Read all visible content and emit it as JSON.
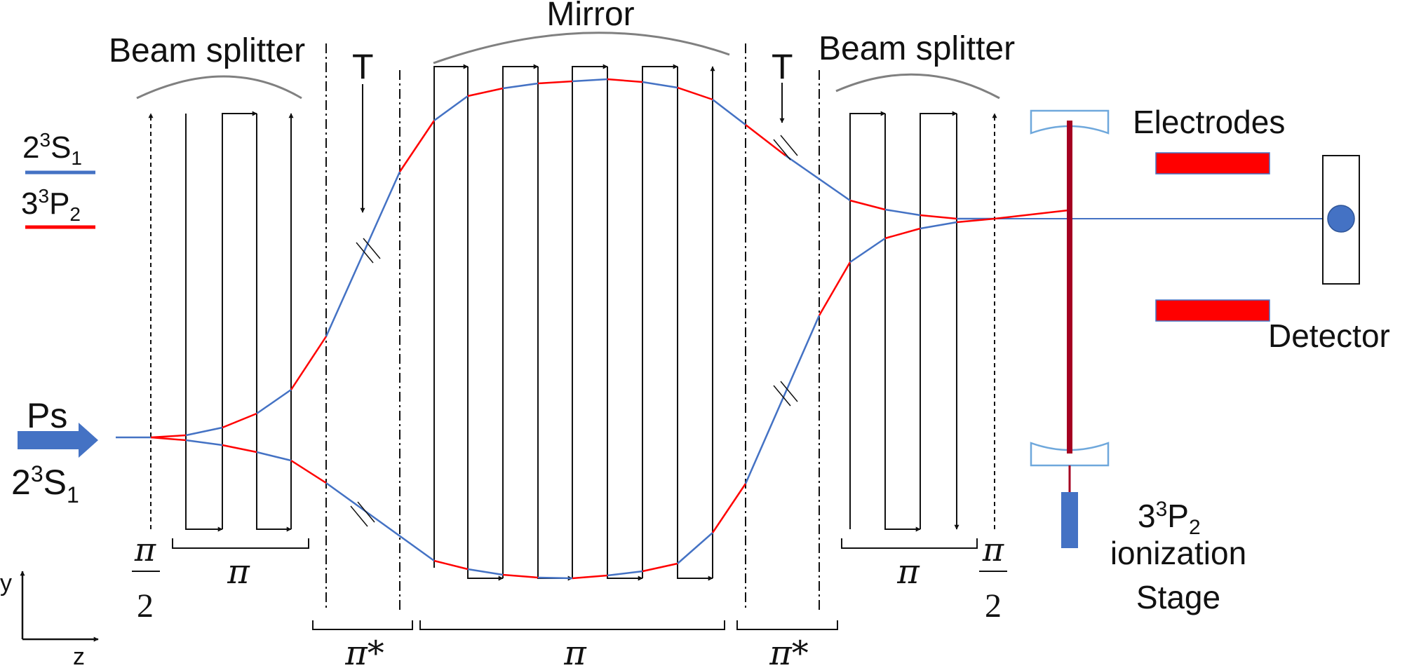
{
  "labels": {
    "mirror": "Mirror",
    "beam_splitter_left": "Beam splitter",
    "beam_splitter_right": "Beam splitter",
    "t_left": "T",
    "t_right": "T",
    "electrodes": "Electrodes",
    "detector": "Detector",
    "ps": "Ps",
    "ps_state": {
      "base": "2",
      "sup": "3",
      "main": "S",
      "sub": "1"
    },
    "ionization_state": {
      "base": "3",
      "sup": "3",
      "main": "P",
      "sub": "2"
    },
    "ionization_line1": "ionization",
    "ionization_line2": "Stage",
    "axis_y": "y",
    "axis_z": "z"
  },
  "legend": [
    {
      "base": "2",
      "sup": "3",
      "main": "S",
      "sub": "1",
      "color": "#4472c4"
    },
    {
      "base": "3",
      "sup": "3",
      "main": "P",
      "sub": "2",
      "color": "#ff0000"
    }
  ],
  "pulses": {
    "pi": "π",
    "pi_star": "π*",
    "half_num": "π",
    "half_den": "2"
  },
  "colors": {
    "s_state": "#4472c4",
    "p_state": "#ff0000",
    "laser": "#a50021",
    "arc": "#808080",
    "mirror_outline": "#6fa8dc",
    "electrode": "#ff0000",
    "stage": "#4472c4",
    "arrow_fill": "#4472c4"
  }
}
